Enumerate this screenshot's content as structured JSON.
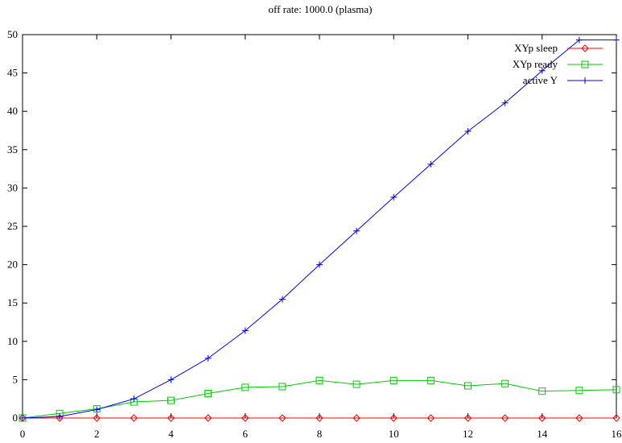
{
  "chart_data": {
    "type": "line",
    "title": "off rate: 1000.0 (plasma)",
    "xlabel": "",
    "ylabel": "",
    "xlim": [
      0,
      16
    ],
    "ylim": [
      0,
      50
    ],
    "x_ticks": [
      0,
      2,
      4,
      6,
      8,
      10,
      12,
      14,
      16
    ],
    "y_ticks": [
      0,
      5,
      10,
      15,
      20,
      25,
      30,
      35,
      40,
      45,
      50
    ],
    "grid": false,
    "legend_position": "top-right",
    "x": [
      0,
      1,
      2,
      3,
      4,
      5,
      6,
      7,
      8,
      9,
      10,
      11,
      12,
      13,
      14,
      15,
      16
    ],
    "series": [
      {
        "name": "XYp sleep",
        "color": "#ff0000",
        "marker": "diamond",
        "values": [
          0,
          0,
          0,
          0,
          0,
          0,
          0,
          0,
          0,
          0,
          0,
          0,
          0,
          0,
          0,
          0,
          0
        ]
      },
      {
        "name": "XYp ready",
        "color": "#00cc00",
        "marker": "square",
        "values": [
          0,
          0.6,
          1.2,
          2.1,
          2.3,
          3.2,
          4.0,
          4.1,
          4.9,
          4.4,
          4.9,
          4.9,
          4.2,
          4.5,
          3.5,
          3.6,
          3.7
        ]
      },
      {
        "name": "active Y",
        "color": "#0000ff",
        "marker": "plus",
        "values": [
          0,
          0.2,
          1.1,
          2.5,
          5.0,
          7.8,
          11.4,
          15.5,
          20.0,
          24.4,
          28.8,
          33.1,
          37.4,
          41.1,
          45.3,
          49.3,
          49.3
        ]
      }
    ]
  }
}
